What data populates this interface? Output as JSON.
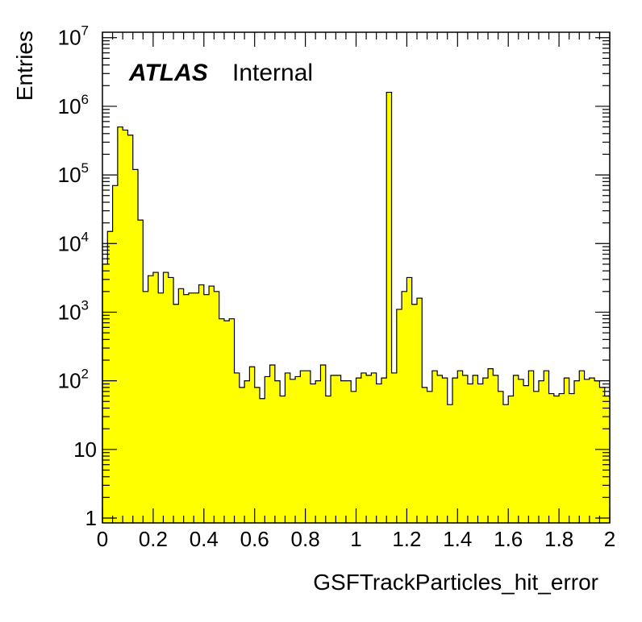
{
  "chart_data": {
    "type": "bar",
    "xlabel": "GSFTrackParticles_hit_error",
    "ylabel": "Entries",
    "xlim": [
      0,
      2
    ],
    "ylim": [
      0.85,
      12000000
    ],
    "yscale": "log",
    "grid": false,
    "fill_color": "#ffff00",
    "line_color": "#000000",
    "bin_width": 0.02,
    "x_ticks": [
      "0",
      "0.2",
      "0.4",
      "0.6",
      "0.8",
      "1",
      "1.2",
      "1.4",
      "1.6",
      "1.8",
      "2"
    ],
    "y_ticks": [
      {
        "value": 1,
        "base": "1",
        "exp": ""
      },
      {
        "value": 10,
        "base": "10",
        "exp": ""
      },
      {
        "value": 100,
        "base": "10",
        "exp": "2"
      },
      {
        "value": 1000,
        "base": "10",
        "exp": "3"
      },
      {
        "value": 10000,
        "base": "10",
        "exp": "4"
      },
      {
        "value": 100000,
        "base": "10",
        "exp": "5"
      },
      {
        "value": 1000000,
        "base": "10",
        "exp": "6"
      },
      {
        "value": 10000000,
        "base": "10",
        "exp": "7"
      }
    ],
    "values": [
      5000,
      15000,
      70000,
      500000,
      450000,
      380000,
      120000,
      22000,
      2000,
      3400,
      3800,
      1900,
      3800,
      3200,
      1300,
      2200,
      1800,
      1900,
      1900,
      2500,
      1800,
      2400,
      2000,
      800,
      750,
      800,
      130,
      80,
      100,
      160,
      80,
      55,
      115,
      170,
      100,
      60,
      130,
      105,
      115,
      140,
      140,
      90,
      100,
      170,
      60,
      120,
      120,
      100,
      100,
      70,
      110,
      130,
      120,
      130,
      90,
      110,
      1600000,
      130,
      1100,
      2000,
      3200,
      1300,
      1600,
      80,
      70,
      140,
      120,
      110,
      45,
      110,
      140,
      120,
      90,
      120,
      90,
      110,
      150,
      120,
      70,
      45,
      60,
      120,
      105,
      85,
      140,
      70,
      100,
      140,
      65,
      60,
      65,
      110,
      65,
      100,
      140,
      105,
      110,
      100,
      80,
      60
    ],
    "annotations": {
      "experiment": "ATLAS",
      "status": "Internal"
    }
  }
}
